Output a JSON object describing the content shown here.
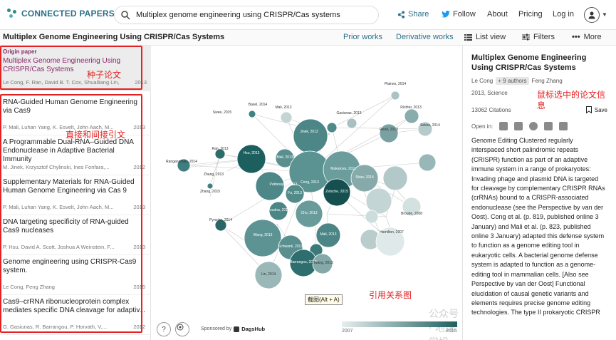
{
  "app": {
    "brand": "CONNECTED PAPERS",
    "search_value": "Multiplex genome engineering using CRISPR/Cas systems",
    "nav": {
      "share": "Share",
      "follow": "Follow",
      "about": "About",
      "pricing": "Pricing",
      "login": "Log in"
    }
  },
  "toolbar": {
    "graph_title": "Multiplex Genome Engineering Using CRISPR/Cas Systems",
    "prior_works": "Prior works",
    "derivative_works": "Derivative works",
    "list_view": "List view",
    "filters": "Filters",
    "more": "More"
  },
  "origin": {
    "label": "Origin paper",
    "title": "Multiplex Genome Engineering Using CRISPR/Cas Systems",
    "authors": "Le Cong, F. Ran, David B. T. Cox, Shuailiang Lin,",
    "year": "2013"
  },
  "papers": [
    {
      "title": "RNA-Guided Human Genome Engineering via Cas9",
      "authors": "P. Mali, Luhan Yang, K. Esvelt, John Aach, M...",
      "year": "2013"
    },
    {
      "title": "A Programmable Dual-RNA–Guided DNA Endonuclease in Adaptive Bacterial Immunity",
      "authors": "M. Jinek, Krzysztof Chylinski, Ines Fonfara,...",
      "year": "2012"
    },
    {
      "title": "Supplementary Materials for RNA-Guided Human Genome Engineering via Cas 9",
      "authors": "P. Mali, Luhan Yang, K. Esvelt, John Aach, M...",
      "year": "2013"
    },
    {
      "title": "DNA targeting specificity of RNA-guided Cas9 nucleases",
      "authors": "P. Hsu, David A. Scott, Joshua A Weinstein, F...",
      "year": "2013"
    },
    {
      "title": "Genome engineering using CRISPR-Cas9 system.",
      "authors": "Le Cong, Feng Zhang",
      "year": "2015"
    },
    {
      "title": "Cas9–crRNA ribonucleoprotein complex mediates specific DNA cleavage for adaptiv...",
      "authors": "G. Gasiunas, R. Barrangou, P. Horvath, V....",
      "year": "2012"
    }
  ],
  "annotations": {
    "seed": "种子论文",
    "citations": "直接和间接引文",
    "graph": "引用关系图",
    "selected": "鼠标选中的论文信息"
  },
  "graph": {
    "node_labels": [
      "Plaines, 2014",
      "Basel, 2014",
      "Mali, 2013",
      "Swee, 2015",
      "Gasiunas, 2013",
      "Richter, 2013",
      "Sekko, 2014",
      "Reed, 2013",
      "Ran, 2013",
      "Ranganathan, 2014",
      "Zhang, 2013",
      "Zhang, 2015",
      "Pyrsche, 2014",
      "Mali, 2013",
      "Cong, 2013",
      "Jinek, 2012",
      "Hsu, 2013",
      "Shao, 2014",
      "Wang, 2013",
      "Zetsche, 2015",
      "Broude, 2008",
      "Hamilton, 2007",
      "Makarova, 2011",
      "Pattanayak, 2013",
      "Fu, 2013",
      "Cho, 2013",
      "Doudna, 2014",
      "Mali, 2013",
      "Schwank, 2013",
      "Barrangou, 2007",
      "Hwang, 2013",
      "Lin, 2014"
    ],
    "screenshot_hint": "截图(Alt + A)",
    "sponsor_label": "Sponsored by",
    "sponsor_brand": "DagsHub",
    "legend_start": "2007",
    "legend_end": "2015",
    "help": "?",
    "watermark": "公众号 · 地球学姐"
  },
  "detail": {
    "title": "Multiplex Genome Engineering Using CRISPR/Cas Systems",
    "author_first": "Le Cong",
    "more_authors": "+ 9 authors",
    "author_last": "Feng Zhang",
    "year_venue": "2013, Science",
    "citations": "13062 Citations",
    "save": "Save",
    "open_in": "Open in:",
    "abstract": "Genome Editing Clustered regularly interspaced short palindromic repeats (CRISPR) function as part of an adaptive immune system in a range of prokaryotes: Invading phage and plasmid DNA is targeted for cleavage by complementary CRISPR RNAs (crRNAs) bound to a CRISPR-associated endonuclease (see the Perspective by van der Oost). Cong et al. (p. 819, published online 3 January) and Mali et al. (p. 823, published online 3 January) adapted this defense system to function as a genome editing tool in eukaryotic cells. A bacterial genome defense system is adapted to function as a genome-editing tool in mammalian cells. [Also see Perspective by van der Oost] Functional elucidation of causal genetic variants and elements requires precise genome editing technologies. The type II prokaryotic CRISPR"
  }
}
